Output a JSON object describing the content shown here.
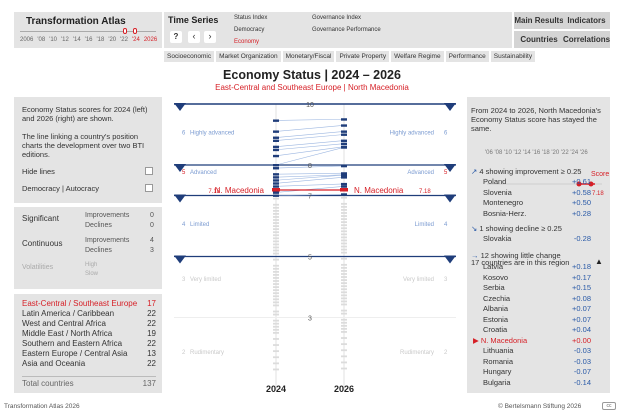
{
  "app_title": "Transformation Atlas",
  "timeline_years": [
    "2006",
    "'08",
    "'10",
    "'12",
    "'14",
    "'16",
    "'18",
    "'20",
    "'22",
    "'24",
    "2026"
  ],
  "time_series_title": "Time Series",
  "indices": {
    "status_index": "Status Index",
    "democracy": "Democracy",
    "economy": "Economy",
    "governance_index": "Governance Index",
    "governance_performance": "Governance Performance"
  },
  "help_label": "?",
  "nav": {
    "main_results": "Main Results",
    "indicators": "Indicators",
    "countries": "Countries",
    "correlations": "Correlations"
  },
  "tabs": [
    "Socioeconomic",
    "Market Organization",
    "Monetary/Fiscal",
    "Private Property",
    "Welfare Regime",
    "Performance",
    "Sustainability"
  ],
  "page_title": "Economy Status | 2024 – 2026",
  "subtitle": "East-Central and Southeast Europe | North Macedonia",
  "info_text1": "Economy Status scores for 2024 (left) and 2026 (right) are shown.",
  "info_text2": "The line linking a country's position charts the development over two BTI editions.",
  "hide_lines_label": "Hide lines",
  "dem_aut_label": "Democracy | Autocracy",
  "changes": {
    "significant_label": "Significant",
    "continuous_label": "Continuous",
    "volatilities_label": "Volatilities",
    "improvements_label": "Improvements",
    "declines_label": "Declines",
    "high_label": "High",
    "slow_label": "Slow",
    "sig_improvements": "0",
    "sig_declines": "0",
    "cont_improvements": "4",
    "cont_declines": "3"
  },
  "regions": [
    {
      "name": "East-Central / Southeast Europe",
      "count": "17"
    },
    {
      "name": "Latin America / Caribbean",
      "count": "22"
    },
    {
      "name": "West and Central Africa",
      "count": "22"
    },
    {
      "name": "Middle East / North Africa",
      "count": "19"
    },
    {
      "name": "Southern and Eastern Africa",
      "count": "22"
    },
    {
      "name": "Eastern Europe / Central Asia",
      "count": "13"
    },
    {
      "name": "Asia and Oceania",
      "count": "22"
    }
  ],
  "total_label": "Total countries",
  "total_count": "137",
  "chart": {
    "axis_labels": [
      "10",
      "8",
      "7",
      "5",
      "3"
    ],
    "categories_left": [
      "Highly advanced",
      "Advanced",
      "Limited",
      "Very limited",
      "Rudimentary"
    ],
    "categories_right": [
      "Highly advanced",
      "Advanced",
      "Limited",
      "Very limited",
      "Rudimentary"
    ],
    "cat_nums": [
      "6",
      "5",
      "4",
      "3",
      "2"
    ],
    "selected_country": "N. Macedonia",
    "selected_score_left": "7.18",
    "selected_score_right": "7.18",
    "year_left": "2024",
    "year_right": "2026"
  },
  "right_panel": {
    "summary": "From 2024 to 2026, North Macedonia's Economy Status score has stayed the same.",
    "mini_years": "'06 '08 '10 '12 '14 '16 '18 '20 '22 '24 '26",
    "score_label": "Score",
    "score_value": "7.18",
    "improve_header": "4 showing improvement ≥ 0.25",
    "improve": [
      {
        "name": "Poland",
        "value": "+0.61"
      },
      {
        "name": "Slovenia",
        "value": "+0.58"
      },
      {
        "name": "Montenegro",
        "value": "+0.50"
      },
      {
        "name": "Bosnia-Herz.",
        "value": "+0.28"
      }
    ],
    "decline_header": "1 showing decline ≥ 0.25",
    "decline": [
      {
        "name": "Slovakia",
        "value": "-0.28"
      }
    ],
    "little_header": "12 showing little change",
    "overlay_note": "17 countries are in this region",
    "little": [
      {
        "name": "Latvia",
        "value": "+0.18"
      },
      {
        "name": "Kosovo",
        "value": "+0.17"
      },
      {
        "name": "Serbia",
        "value": "+0.15"
      },
      {
        "name": "Czechia",
        "value": "+0.08"
      },
      {
        "name": "Albania",
        "value": "+0.07"
      },
      {
        "name": "Estonia",
        "value": "+0.07"
      },
      {
        "name": "Croatia",
        "value": "+0.04"
      },
      {
        "name": "N. Macedonia",
        "value": "+0.00"
      },
      {
        "name": "Lithuania",
        "value": "-0.03"
      },
      {
        "name": "Romania",
        "value": "-0.03"
      },
      {
        "name": "Hungary",
        "value": "-0.07"
      },
      {
        "name": "Bulgaria",
        "value": "-0.14"
      }
    ]
  },
  "footer_left": "Transformation Atlas 2026",
  "footer_right": "© Bertelsmann Stiftung 2026",
  "colors": {
    "red": "#d61f26",
    "blue": "#2a5aa7",
    "navy": "#1f3d7a"
  }
}
